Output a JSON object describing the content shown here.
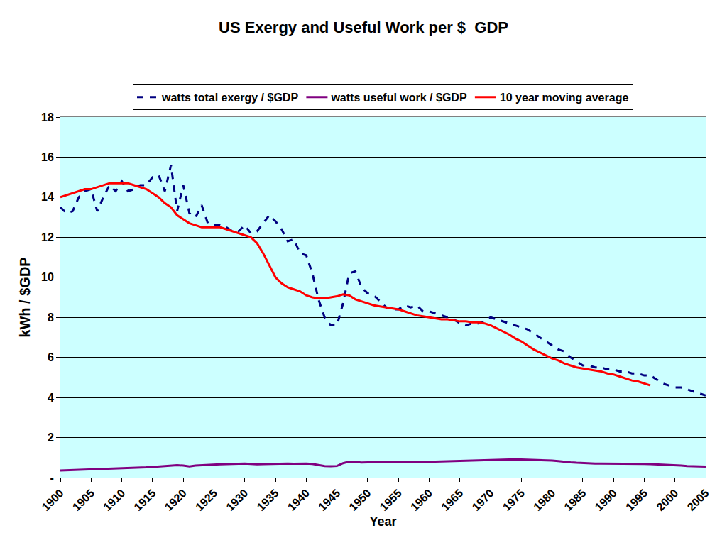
{
  "chart_data": {
    "type": "line",
    "title": "US Exergy and Useful Work per $  GDP",
    "x_label": "Year",
    "y_label": "kWh / $GDP",
    "x": [
      1900,
      1901,
      1902,
      1903,
      1904,
      1905,
      1906,
      1907,
      1908,
      1909,
      1910,
      1911,
      1912,
      1913,
      1914,
      1915,
      1916,
      1917,
      1918,
      1919,
      1920,
      1921,
      1922,
      1923,
      1924,
      1925,
      1926,
      1927,
      1928,
      1929,
      1930,
      1931,
      1932,
      1933,
      1934,
      1935,
      1936,
      1937,
      1938,
      1939,
      1940,
      1941,
      1942,
      1943,
      1944,
      1945,
      1946,
      1947,
      1948,
      1949,
      1950,
      1951,
      1952,
      1953,
      1954,
      1955,
      1956,
      1957,
      1958,
      1959,
      1960,
      1961,
      1962,
      1963,
      1964,
      1965,
      1966,
      1967,
      1968,
      1969,
      1970,
      1971,
      1972,
      1973,
      1974,
      1975,
      1976,
      1977,
      1978,
      1979,
      1980,
      1981,
      1982,
      1983,
      1984,
      1985,
      1986,
      1987,
      1988,
      1989,
      1990,
      1991,
      1992,
      1993,
      1994,
      1995,
      1996,
      1997,
      1998,
      1999,
      2000,
      2001,
      2002,
      2003,
      2004,
      2005
    ],
    "series": [
      {
        "name": "watts total exergy / $GDP",
        "color": "#000080",
        "line_style": "dash",
        "values": [
          13.5,
          13.2,
          13.3,
          14.0,
          14.3,
          14.4,
          13.3,
          14.0,
          14.6,
          14.3,
          14.8,
          14.3,
          14.4,
          14.6,
          14.6,
          15.0,
          15.1,
          14.3,
          15.6,
          13.3,
          14.6,
          13.2,
          13.0,
          13.6,
          12.7,
          12.6,
          12.6,
          12.5,
          12.3,
          12.3,
          12.6,
          12.2,
          12.3,
          12.7,
          13.1,
          12.8,
          12.4,
          11.8,
          11.9,
          11.2,
          11.1,
          10.2,
          8.9,
          8.0,
          7.6,
          7.6,
          8.7,
          10.2,
          10.3,
          9.5,
          9.2,
          9.1,
          8.8,
          8.5,
          8.4,
          8.4,
          8.6,
          8.5,
          8.6,
          8.3,
          8.3,
          8.2,
          8.1,
          8.0,
          7.9,
          7.7,
          7.6,
          7.7,
          7.7,
          7.8,
          8.0,
          7.9,
          7.8,
          7.7,
          7.6,
          7.5,
          7.4,
          7.2,
          7.0,
          6.8,
          6.6,
          6.4,
          6.3,
          6.0,
          5.8,
          5.6,
          5.6,
          5.5,
          5.5,
          5.4,
          5.4,
          5.3,
          5.3,
          5.2,
          5.2,
          5.1,
          5.1,
          4.9,
          4.7,
          4.6,
          4.5,
          4.5,
          4.4,
          4.3,
          4.2,
          4.1
        ]
      },
      {
        "name": "watts useful work / $GDP",
        "color": "#800080",
        "line_style": "solid",
        "values": [
          0.35,
          0.36,
          0.38,
          0.4,
          0.41,
          0.42,
          0.42,
          0.44,
          0.45,
          0.46,
          0.47,
          0.48,
          0.49,
          0.5,
          0.51,
          0.53,
          0.55,
          0.57,
          0.6,
          0.62,
          0.6,
          0.56,
          0.6,
          0.62,
          0.63,
          0.65,
          0.66,
          0.67,
          0.68,
          0.69,
          0.7,
          0.68,
          0.66,
          0.67,
          0.68,
          0.68,
          0.69,
          0.7,
          0.69,
          0.7,
          0.7,
          0.68,
          0.62,
          0.58,
          0.57,
          0.58,
          0.72,
          0.8,
          0.78,
          0.75,
          0.76,
          0.76,
          0.75,
          0.75,
          0.74,
          0.75,
          0.76,
          0.76,
          0.77,
          0.78,
          0.78,
          0.79,
          0.8,
          0.8,
          0.81,
          0.82,
          0.83,
          0.84,
          0.85,
          0.87,
          0.88,
          0.89,
          0.9,
          0.91,
          0.91,
          0.9,
          0.89,
          0.89,
          0.88,
          0.87,
          0.85,
          0.82,
          0.78,
          0.76,
          0.74,
          0.72,
          0.71,
          0.7,
          0.7,
          0.7,
          0.7,
          0.69,
          0.69,
          0.68,
          0.68,
          0.68,
          0.67,
          0.66,
          0.64,
          0.62,
          0.61,
          0.6,
          0.58,
          0.57,
          0.56,
          0.55
        ]
      },
      {
        "name": "10 year moving average",
        "color": "#ff0000",
        "line_style": "solid",
        "values": [
          14.0,
          14.1,
          14.2,
          14.3,
          14.4,
          14.4,
          14.5,
          14.6,
          14.7,
          14.7,
          14.7,
          14.7,
          14.6,
          14.5,
          14.4,
          14.2,
          14.0,
          13.7,
          13.5,
          13.1,
          12.9,
          12.7,
          12.6,
          12.5,
          12.5,
          12.5,
          12.5,
          12.4,
          12.3,
          12.2,
          12.1,
          12.0,
          11.7,
          11.2,
          10.6,
          10.0,
          9.7,
          9.5,
          9.4,
          9.3,
          9.1,
          9.0,
          8.95,
          8.95,
          9.0,
          9.05,
          9.15,
          9.1,
          8.9,
          8.8,
          8.7,
          8.6,
          8.55,
          8.5,
          8.45,
          8.4,
          8.3,
          8.2,
          8.1,
          8.05,
          8.0,
          7.95,
          7.9,
          7.9,
          7.85,
          7.8,
          7.8,
          7.75,
          7.75,
          7.7,
          7.6,
          7.45,
          7.3,
          7.15,
          6.95,
          6.8,
          6.6,
          6.4,
          6.25,
          6.1,
          5.95,
          5.85,
          5.7,
          5.6,
          5.5,
          5.45,
          5.4,
          5.35,
          5.3,
          5.2,
          5.15,
          5.05,
          4.95,
          4.85,
          4.8,
          4.7,
          4.6,
          null,
          null,
          null,
          null,
          null,
          null,
          null,
          null,
          null
        ]
      }
    ],
    "xlim": [
      1900,
      2005
    ],
    "xticks": [
      1900,
      1905,
      1910,
      1915,
      1920,
      1925,
      1930,
      1935,
      1940,
      1945,
      1950,
      1955,
      1960,
      1965,
      1970,
      1975,
      1980,
      1985,
      1990,
      1995,
      2000,
      2005
    ],
    "ylim": [
      0,
      18
    ],
    "yticks": [
      {
        "value": 0,
        "label": "-"
      },
      2,
      4,
      6,
      8,
      10,
      12,
      14,
      16,
      18
    ],
    "grid": true,
    "legend": "top"
  }
}
